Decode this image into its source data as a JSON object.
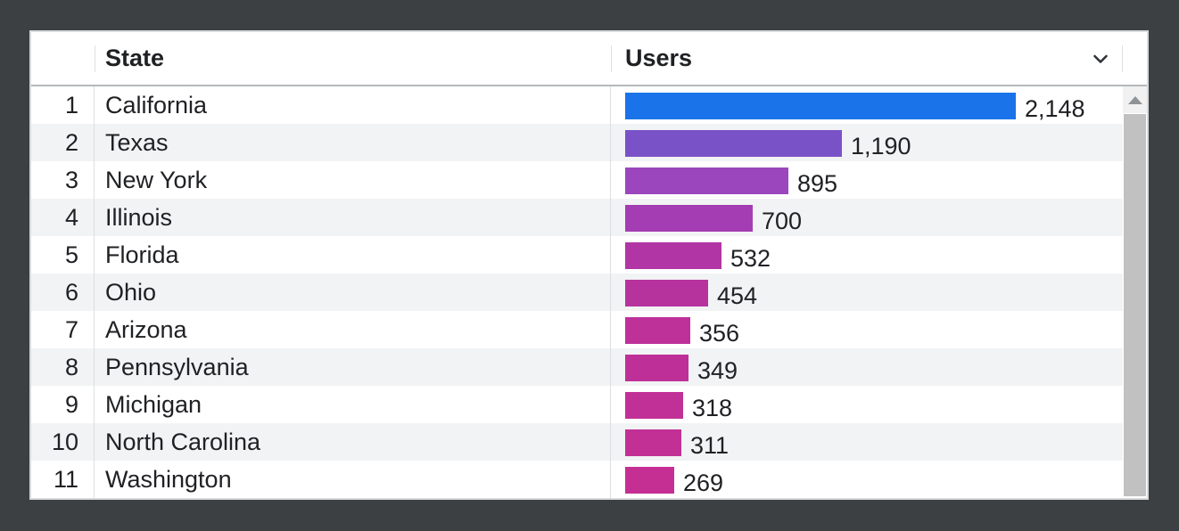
{
  "frame": {
    "background_color": "#3c4043"
  },
  "table": {
    "header": {
      "index_label": "",
      "state_label": "State",
      "users_label": "Users",
      "chevron_icon": "chevron-down",
      "text_color": "#202124"
    },
    "stripe_color": "#f1f3f4",
    "rows": [
      {
        "rank": "1",
        "state": "California",
        "users": 2148,
        "users_label": "2,148",
        "bar_color": "#1a73e8"
      },
      {
        "rank": "2",
        "state": "Texas",
        "users": 1190,
        "users_label": "1,190",
        "bar_color": "#7a52c7"
      },
      {
        "rank": "3",
        "state": "New York",
        "users": 895,
        "users_label": "895",
        "bar_color": "#9b46bc"
      },
      {
        "rank": "4",
        "state": "Illinois",
        "users": 700,
        "users_label": "700",
        "bar_color": "#a43db3"
      },
      {
        "rank": "5",
        "state": "Florida",
        "users": 532,
        "users_label": "532",
        "bar_color": "#b135a4"
      },
      {
        "rank": "6",
        "state": "Ohio",
        "users": 454,
        "users_label": "454",
        "bar_color": "#b6339e"
      },
      {
        "rank": "7",
        "state": "Arizona",
        "users": 356,
        "users_label": "356",
        "bar_color": "#bd3199"
      },
      {
        "rank": "8",
        "state": "Pennsylvania",
        "users": 349,
        "users_label": "349",
        "bar_color": "#be3098"
      },
      {
        "rank": "9",
        "state": "Michigan",
        "users": 318,
        "users_label": "318",
        "bar_color": "#c13096"
      },
      {
        "rank": "10",
        "state": "North Carolina",
        "users": 311,
        "users_label": "311",
        "bar_color": "#c23095"
      },
      {
        "rank": "11",
        "state": "Washington",
        "users": 269,
        "users_label": "269",
        "bar_color": "#c52f94"
      }
    ]
  },
  "scrollbar": {
    "up_arrow_icon": "scroll-up-arrow",
    "thumb_color": "#c1c1c1",
    "track_button_color": "#f1f1f1"
  },
  "chart_data": {
    "type": "bar",
    "orientation": "horizontal",
    "title": "",
    "xlabel": "Users",
    "ylabel": "State",
    "categories": [
      "California",
      "Texas",
      "New York",
      "Illinois",
      "Florida",
      "Ohio",
      "Arizona",
      "Pennsylvania",
      "Michigan",
      "North Carolina",
      "Washington"
    ],
    "values": [
      2148,
      1190,
      895,
      700,
      532,
      454,
      356,
      349,
      318,
      311,
      269
    ],
    "value_labels": [
      "2,148",
      "1,190",
      "895",
      "700",
      "532",
      "454",
      "356",
      "349",
      "318",
      "311",
      "269"
    ],
    "max_value": 2148,
    "bar_colors": [
      "#1a73e8",
      "#7a52c7",
      "#9b46bc",
      "#a43db3",
      "#b135a4",
      "#b6339e",
      "#bd3199",
      "#be3098",
      "#c13096",
      "#c23095",
      "#c52f94"
    ],
    "grid": false,
    "legend": false
  }
}
